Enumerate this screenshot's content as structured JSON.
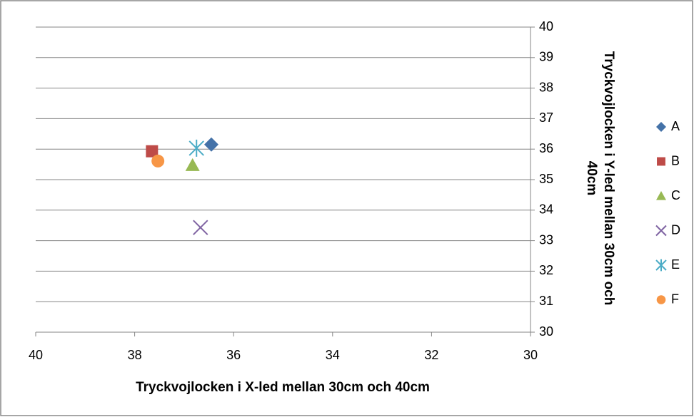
{
  "chart_data": {
    "type": "scatter",
    "x_label": "Tryckvojlocken i X-led mellan 30cm och 40cm",
    "y_label": "Tryckvojlocken i Y-led mellan 30cm och 40cm",
    "xlim": [
      40,
      30
    ],
    "xticks": [
      40,
      38,
      36,
      34,
      32,
      30
    ],
    "ylim": [
      30,
      40
    ],
    "yticks": [
      30,
      31,
      32,
      33,
      34,
      35,
      36,
      37,
      38,
      39,
      40
    ],
    "grid": true,
    "legend": "right",
    "series": [
      {
        "name": "A",
        "color": "#4472a8",
        "marker": "diamond",
        "x": [
          36.45
        ],
        "values": [
          36.15
        ]
      },
      {
        "name": "B",
        "color": "#be4b48",
        "marker": "square",
        "x": [
          37.65
        ],
        "values": [
          35.93
        ]
      },
      {
        "name": "C",
        "color": "#98b954",
        "marker": "triangle",
        "x": [
          36.83
        ],
        "values": [
          35.47
        ]
      },
      {
        "name": "D",
        "color": "#7f63a2",
        "marker": "x",
        "x": [
          36.67
        ],
        "values": [
          33.43
        ]
      },
      {
        "name": "E",
        "color": "#4bacc6",
        "marker": "star",
        "x": [
          36.75
        ],
        "values": [
          36.03
        ]
      },
      {
        "name": "F",
        "color": "#f79646",
        "marker": "circle",
        "x": [
          37.53
        ],
        "values": [
          35.61
        ]
      }
    ]
  }
}
